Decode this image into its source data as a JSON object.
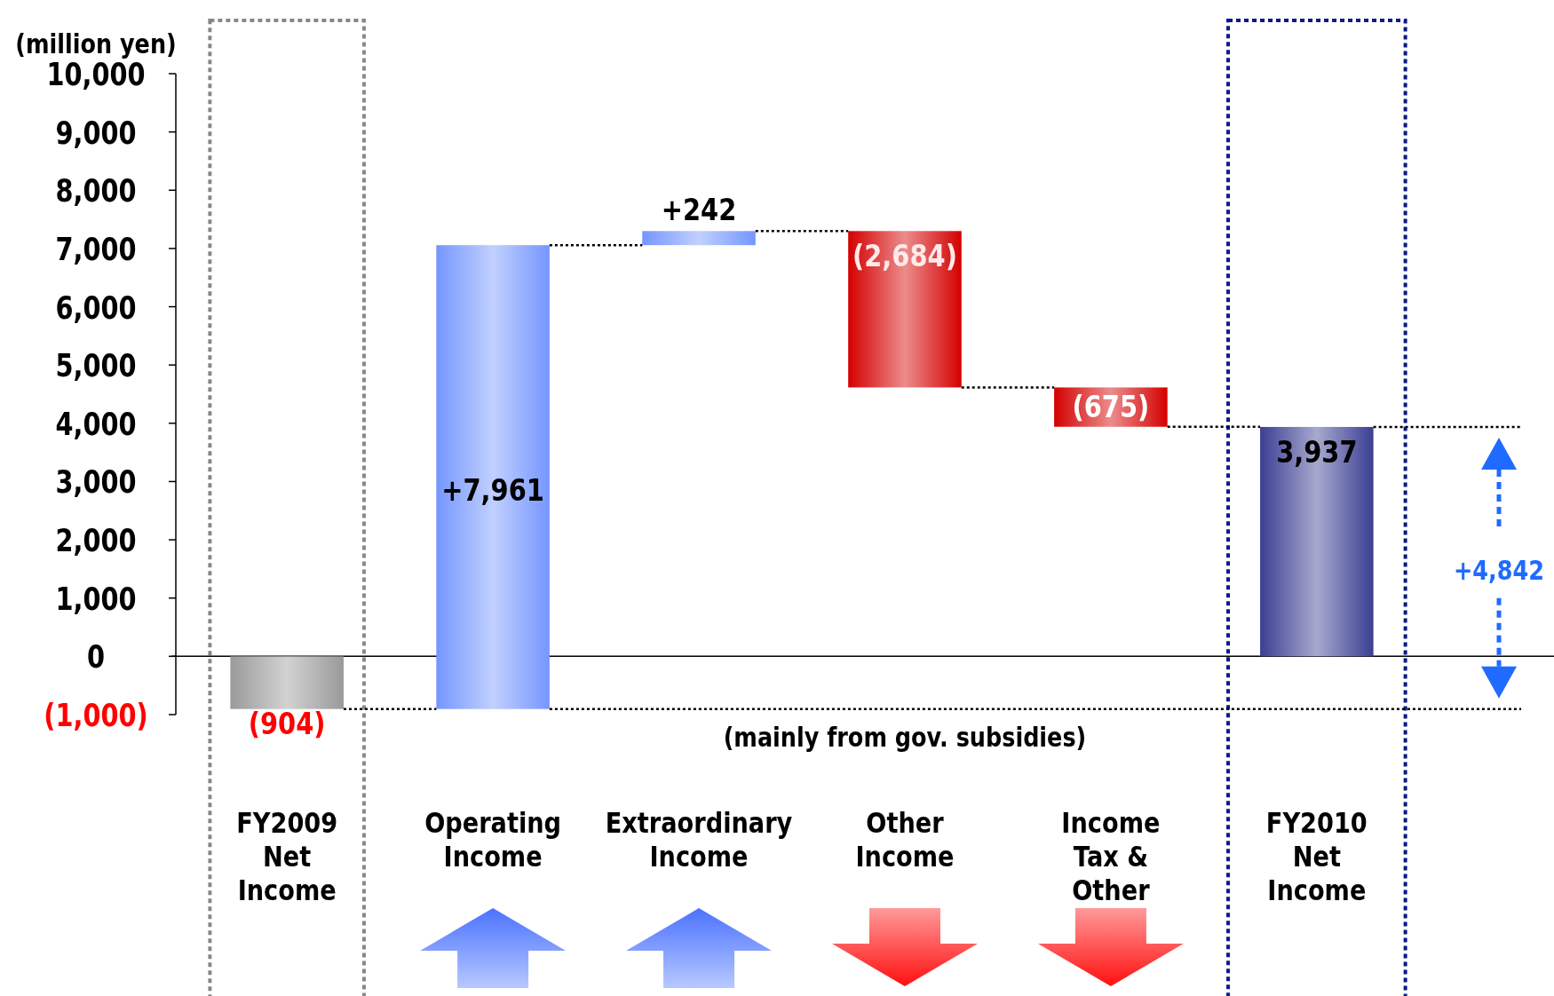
{
  "chart_data": {
    "type": "bar",
    "ylabel": "(million yen)",
    "categories": [
      "FY2009 Net Income",
      "Operating Income",
      "Extraordinary Income",
      "Other Income",
      "Income Tax & Other",
      "FY2010 Net Income"
    ],
    "values": [
      -904,
      7961,
      242,
      -2684,
      -675,
      3937
    ],
    "base": [
      0,
      -904,
      7057,
      7299,
      4615,
      0
    ],
    "colors": [
      "#9a9a9a",
      "#7596ff",
      "#7596ff",
      "#d40000",
      "#d40000",
      "#3b3f93"
    ],
    "value_labels": [
      "(904)",
      "+7,961",
      "+242",
      "(2,684)",
      "(675)",
      "3,937"
    ],
    "ylim": [
      -1000,
      10000
    ],
    "yticks": [
      {
        "value": -1000,
        "label": "(1,000)"
      },
      0,
      {
        "value": 1000,
        "label": "1,000"
      },
      {
        "value": 2000,
        "label": "2,000"
      },
      {
        "value": 3000,
        "label": "3,000"
      },
      {
        "value": 4000,
        "label": "4,000"
      },
      {
        "value": 5000,
        "label": "5,000"
      },
      {
        "value": 6000,
        "label": "6,000"
      },
      {
        "value": 7000,
        "label": "7,000"
      },
      {
        "value": 8000,
        "label": "8,000"
      },
      {
        "value": 9000,
        "label": "9,000"
      },
      {
        "value": 10000,
        "label": "10,000"
      }
    ],
    "annotations": [
      "(mainly from gov. subsidies)",
      "+4,842"
    ],
    "ref_lines": [
      {
        "axis": "y",
        "value": 3937,
        "line_style": "dotted",
        "color": "#000000"
      },
      {
        "axis": "y",
        "value": -904,
        "line_style": "dotted",
        "color": "#000000"
      }
    ]
  }
}
